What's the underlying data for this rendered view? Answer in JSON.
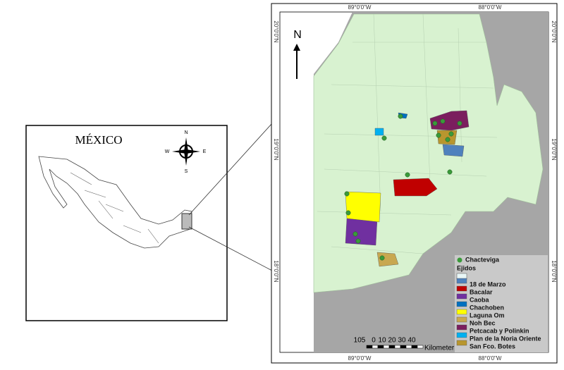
{
  "inset": {
    "title": "MÉXICO",
    "compass": {
      "n": "N",
      "e": "E",
      "s": "S",
      "w": "W"
    }
  },
  "map": {
    "north": "N",
    "coords_top": [
      "89°0'0\"W",
      "88°0'0\"W"
    ],
    "coords_bottom": [
      "89°0'0\"W",
      "88°0'0\"W"
    ],
    "coords_left": [
      "20°0'0\"N",
      "19°0'0\"N",
      "18°0'0\"N"
    ],
    "coords_right": [
      "20°0'0\"N",
      "19°0'0\"N",
      "18°0'0\"N"
    ]
  },
  "legend": {
    "point": "Chacteviga",
    "point_color": "#3a9a3a",
    "heading": "Ejidos",
    "items": [
      {
        "name": "18 de Marzo",
        "color": "#4f81bd"
      },
      {
        "name": "Bacalar",
        "color": "#c00000"
      },
      {
        "name": "Caoba",
        "color": "#7030a0"
      },
      {
        "name": "Chachoben",
        "color": "#0070c0"
      },
      {
        "name": "Laguna Om",
        "color": "#ffff00"
      },
      {
        "name": "Noh Bec",
        "color": "#c8a850"
      },
      {
        "name": "Petcacab y Polinkin",
        "color": "#7b1e5e"
      },
      {
        "name": "Plan de la Noria Oriente",
        "color": "#00b0f0"
      },
      {
        "name": "San Fco. Botes",
        "color": "#b8962e"
      }
    ]
  },
  "scale": {
    "labels": [
      "105",
      "0",
      "10",
      "20",
      "30",
      "40"
    ],
    "unit": "Kilometer"
  }
}
